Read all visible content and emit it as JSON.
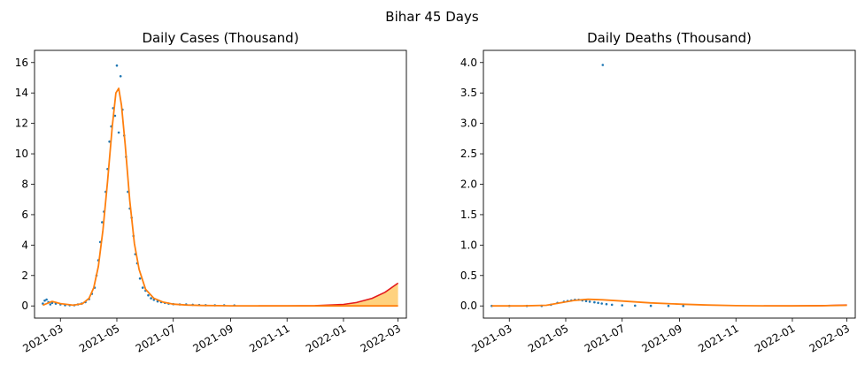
{
  "figure": {
    "title": "Bihar 45 Days"
  },
  "chart_data": [
    {
      "type": "scatter",
      "title": "Daily Cases (Thousand)",
      "xlabel": "",
      "ylabel": "",
      "x_type": "date",
      "xlim": [
        "2021-02-01",
        "2022-03-10"
      ],
      "ylim": [
        -0.8,
        16.8
      ],
      "x_ticks": [
        "2021-03-01",
        "2021-05-01",
        "2021-07-01",
        "2021-09-01",
        "2021-11-01",
        "2022-01-01",
        "2022-03-01"
      ],
      "x_tick_labels": [
        "2021-03",
        "2021-05",
        "2021-07",
        "2021-09",
        "2021-11",
        "2022-01",
        "2022-03"
      ],
      "y_ticks": [
        0,
        2,
        4,
        6,
        8,
        10,
        12,
        14,
        16
      ],
      "y_tick_labels": [
        "0",
        "2",
        "4",
        "6",
        "8",
        "10",
        "12",
        "14",
        "16"
      ],
      "grid": false,
      "colors": {
        "points": "#1f77b4",
        "fit": "#ff7f0e",
        "projection": "#e31a1c",
        "band": "#ffa500"
      },
      "scatter": {
        "x": [
          "2021-02-10",
          "2021-02-12",
          "2021-02-14",
          "2021-02-16",
          "2021-02-18",
          "2021-02-20",
          "2021-02-24",
          "2021-03-01",
          "2021-03-06",
          "2021-03-11",
          "2021-03-16",
          "2021-03-20",
          "2021-03-24",
          "2021-03-28",
          "2021-04-01",
          "2021-04-04",
          "2021-04-07",
          "2021-04-09",
          "2021-04-11",
          "2021-04-13",
          "2021-04-15",
          "2021-04-17",
          "2021-04-19",
          "2021-04-21",
          "2021-04-23",
          "2021-04-25",
          "2021-04-27",
          "2021-04-29",
          "2021-05-01",
          "2021-05-03",
          "2021-05-05",
          "2021-05-07",
          "2021-05-09",
          "2021-05-11",
          "2021-05-13",
          "2021-05-15",
          "2021-05-17",
          "2021-05-19",
          "2021-05-21",
          "2021-05-23",
          "2021-05-26",
          "2021-05-29",
          "2021-06-01",
          "2021-06-04",
          "2021-06-07",
          "2021-06-10",
          "2021-06-14",
          "2021-06-18",
          "2021-06-22",
          "2021-06-26",
          "2021-07-01",
          "2021-07-08",
          "2021-07-15",
          "2021-07-22",
          "2021-07-29",
          "2021-08-05",
          "2021-08-15",
          "2021-08-25",
          "2021-09-05"
        ],
        "y": [
          0.15,
          0.35,
          0.42,
          0.25,
          0.1,
          0.2,
          0.15,
          0.1,
          0.05,
          0.05,
          0.05,
          0.1,
          0.15,
          0.25,
          0.45,
          0.8,
          1.2,
          2.0,
          3.0,
          4.2,
          5.5,
          6.2,
          7.5,
          9.0,
          10.8,
          11.8,
          13.0,
          12.5,
          15.8,
          11.4,
          15.1,
          12.9,
          11.2,
          9.8,
          7.5,
          6.4,
          5.8,
          4.6,
          3.4,
          2.8,
          1.8,
          1.2,
          1.0,
          0.7,
          0.5,
          0.4,
          0.3,
          0.25,
          0.2,
          0.15,
          0.12,
          0.1,
          0.1,
          0.08,
          0.06,
          0.05,
          0.04,
          0.04,
          0.03
        ]
      },
      "fit": {
        "x": [
          "2021-02-10",
          "2021-02-20",
          "2021-03-01",
          "2021-03-15",
          "2021-03-25",
          "2021-04-01",
          "2021-04-06",
          "2021-04-11",
          "2021-04-16",
          "2021-04-21",
          "2021-04-26",
          "2021-04-30",
          "2021-05-03",
          "2021-05-06",
          "2021-05-10",
          "2021-05-15",
          "2021-05-20",
          "2021-05-25",
          "2021-06-01",
          "2021-06-10",
          "2021-06-20",
          "2021-07-01",
          "2021-07-15",
          "2021-08-01",
          "2021-09-01",
          "2021-10-01",
          "2021-11-01",
          "2021-12-01",
          "2022-01-01",
          "2022-02-01",
          "2022-03-01"
        ],
        "y": [
          0.05,
          0.3,
          0.15,
          0.05,
          0.15,
          0.5,
          1.2,
          2.6,
          5.0,
          8.2,
          11.8,
          14.0,
          14.3,
          13.2,
          10.6,
          6.9,
          4.1,
          2.4,
          1.1,
          0.5,
          0.25,
          0.12,
          0.06,
          0.03,
          0.01,
          0.0,
          0.0,
          0.0,
          0.0,
          0.0,
          0.0
        ]
      },
      "projection": {
        "x": [
          "2021-10-01",
          "2021-11-01",
          "2021-12-01",
          "2022-01-01",
          "2022-01-15",
          "2022-02-01",
          "2022-02-15",
          "2022-03-01"
        ],
        "y": [
          0.0,
          0.0,
          0.02,
          0.1,
          0.22,
          0.5,
          0.9,
          1.5
        ]
      }
    },
    {
      "type": "scatter",
      "title": "Daily Deaths (Thousand)",
      "xlabel": "",
      "ylabel": "",
      "x_type": "date",
      "xlim": [
        "2021-02-01",
        "2022-03-10"
      ],
      "ylim": [
        -0.2,
        4.2
      ],
      "x_ticks": [
        "2021-03-01",
        "2021-05-01",
        "2021-07-01",
        "2021-09-01",
        "2021-11-01",
        "2022-01-01",
        "2022-03-01"
      ],
      "x_tick_labels": [
        "2021-03",
        "2021-05",
        "2021-07",
        "2021-09",
        "2021-11",
        "2022-01",
        "2022-03"
      ],
      "y_ticks": [
        0.0,
        0.5,
        1.0,
        1.5,
        2.0,
        2.5,
        3.0,
        3.5,
        4.0
      ],
      "y_tick_labels": [
        "0.0",
        "0.5",
        "1.0",
        "1.5",
        "2.0",
        "2.5",
        "3.0",
        "3.5",
        "4.0"
      ],
      "grid": false,
      "colors": {
        "points": "#1f77b4",
        "fit": "#ff7f0e",
        "projection": "#e31a1c"
      },
      "scatter": {
        "x": [
          "2021-02-10",
          "2021-03-01",
          "2021-03-20",
          "2021-04-05",
          "2021-04-15",
          "2021-04-22",
          "2021-04-29",
          "2021-05-03",
          "2021-05-07",
          "2021-05-11",
          "2021-05-15",
          "2021-05-19",
          "2021-05-23",
          "2021-05-27",
          "2021-06-01",
          "2021-06-05",
          "2021-06-09",
          "2021-06-10",
          "2021-06-14",
          "2021-06-20",
          "2021-07-01",
          "2021-07-15",
          "2021-08-01",
          "2021-08-20",
          "2021-09-05"
        ],
        "y": [
          0.0,
          0.0,
          0.0,
          0.0,
          0.02,
          0.05,
          0.07,
          0.08,
          0.09,
          0.1,
          0.1,
          0.09,
          0.08,
          0.07,
          0.06,
          0.05,
          0.04,
          3.96,
          0.03,
          0.02,
          0.01,
          0.005,
          0.002,
          0.001,
          0.0
        ]
      },
      "fit": {
        "x": [
          "2021-02-10",
          "2021-03-15",
          "2021-04-10",
          "2021-04-25",
          "2021-05-10",
          "2021-05-25",
          "2021-06-10",
          "2021-07-01",
          "2021-08-01",
          "2021-09-01",
          "2021-10-01",
          "2021-11-01",
          "2021-12-01",
          "2022-01-01",
          "2022-02-01",
          "2022-03-01"
        ],
        "y": [
          0.0,
          0.0,
          0.01,
          0.05,
          0.09,
          0.11,
          0.1,
          0.08,
          0.05,
          0.03,
          0.015,
          0.005,
          0.002,
          0.0,
          0.003,
          0.01
        ]
      },
      "projection": {
        "x": [
          "2021-12-01",
          "2022-01-01",
          "2022-02-01",
          "2022-03-01"
        ],
        "y": [
          0.0,
          0.0,
          0.005,
          0.015
        ]
      }
    }
  ]
}
